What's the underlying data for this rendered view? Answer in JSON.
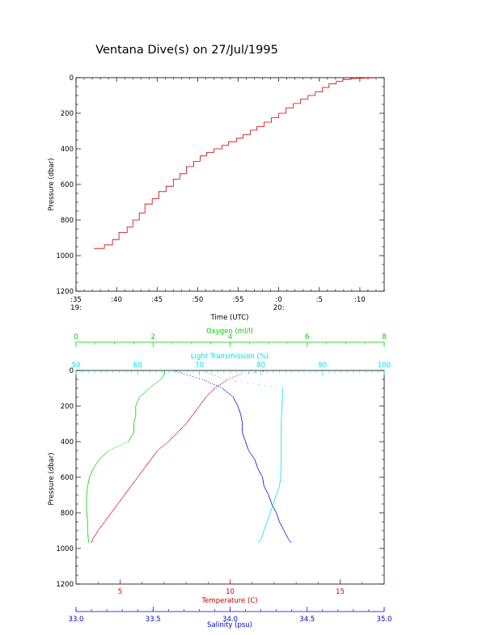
{
  "title": "Ventana Dive(s) on 27/Jul/1995",
  "colors": {
    "axis": "#000000",
    "temperature": "#cc0000",
    "salinity": "#0000cc",
    "oxygen": "#00cc00",
    "transmission": "#00e0e0",
    "trace": "#cc0000"
  },
  "chart_data": [
    {
      "type": "line",
      "xlabel": "Time (UTC)",
      "ylabel": "Pressure (dbar)",
      "x_tick_labels": [
        ":35",
        ":40",
        ":45",
        ":50",
        ":55",
        ":0",
        ":5",
        ":10"
      ],
      "x_tick_hour_labels": [
        {
          "at": ":35",
          "label": "19:"
        },
        {
          "at": ":0",
          "label": "20:"
        }
      ],
      "x_range_minutes_after_19_00": [
        35,
        73
      ],
      "y_ticks": [
        0,
        200,
        400,
        600,
        800,
        1000,
        1200
      ],
      "ylim": [
        1200,
        0
      ],
      "y_reversed": true,
      "step_style": true,
      "series": [
        {
          "time_minutes_after_19_00": [
            37.2,
            38.5,
            39.5,
            40.3,
            41.3,
            42.0,
            42.8,
            43.5,
            44.4,
            45.2,
            46.1,
            47.0,
            47.8,
            48.6,
            49.5,
            50.3,
            51.1,
            52.0,
            53.0,
            53.8,
            54.8,
            55.6,
            56.5,
            57.3,
            58.2,
            59.1,
            60.0,
            60.9,
            61.8,
            62.7,
            63.6,
            64.5,
            65.4,
            66.2,
            67.1,
            67.9,
            68.8,
            69.6,
            70.5,
            71.3,
            72.1
          ],
          "pressure_dbar": [
            960,
            940,
            910,
            870,
            840,
            800,
            760,
            710,
            680,
            640,
            610,
            570,
            540,
            500,
            470,
            440,
            420,
            400,
            380,
            360,
            340,
            320,
            295,
            275,
            250,
            225,
            200,
            170,
            145,
            120,
            100,
            80,
            55,
            35,
            20,
            10,
            5,
            3,
            2,
            1,
            0
          ]
        }
      ]
    },
    {
      "type": "scatter",
      "ylabel": "Pressure (dbar)",
      "y_ticks": [
        0,
        200,
        400,
        600,
        800,
        1000,
        1200
      ],
      "ylim": [
        1200,
        0
      ],
      "y_reversed": true,
      "x_axes": [
        {
          "label": "Oxygen (ml/l)",
          "position": "top-1",
          "range": [
            0,
            8
          ],
          "ticks": [
            0,
            2,
            4,
            6,
            8
          ],
          "color_key": "oxygen"
        },
        {
          "label": "Light Transmission (%)",
          "position": "top-2",
          "range": [
            50,
            100
          ],
          "ticks": [
            50,
            60,
            70,
            80,
            90,
            100
          ],
          "color_key": "transmission"
        },
        {
          "label": "Temperature (C)",
          "position": "bottom-1",
          "range": [
            3,
            17
          ],
          "ticks": [
            5,
            10,
            15
          ],
          "color_key": "temperature"
        },
        {
          "label": "Salinity (psu)",
          "position": "bottom-2",
          "range": [
            33.0,
            35.0
          ],
          "ticks": [
            "33.0",
            "33.5",
            "34.0",
            "34.5",
            "35.0"
          ],
          "color_key": "salinity"
        }
      ],
      "series": [
        {
          "name": "Temperature",
          "axis": "Temperature (C)",
          "color_key": "temperature",
          "pressure": [
            5,
            20,
            50,
            100,
            150,
            200,
            250,
            300,
            350,
            400,
            450,
            500,
            550,
            600,
            650,
            700,
            750,
            800,
            850,
            900,
            950,
            970
          ],
          "values": [
            11.5,
            10.5,
            9.9,
            9.3,
            8.9,
            8.6,
            8.3,
            8.0,
            7.6,
            7.2,
            6.7,
            6.4,
            6.1,
            5.8,
            5.5,
            5.2,
            4.9,
            4.6,
            4.3,
            4.0,
            3.75,
            3.7
          ]
        },
        {
          "name": "Salinity",
          "axis": "Salinity (psu)",
          "color_key": "salinity",
          "pressure": [
            5,
            20,
            50,
            100,
            150,
            200,
            250,
            300,
            350,
            400,
            450,
            500,
            550,
            600,
            650,
            700,
            750,
            800,
            850,
            900,
            950,
            970
          ],
          "values": [
            33.65,
            33.7,
            33.82,
            33.95,
            34.02,
            34.05,
            34.07,
            34.08,
            34.08,
            34.1,
            34.12,
            34.16,
            34.18,
            34.21,
            34.22,
            34.25,
            34.27,
            34.3,
            34.32,
            34.35,
            34.38,
            34.4
          ]
        },
        {
          "name": "Oxygen",
          "axis": "Oxygen (ml/l)",
          "color_key": "oxygen",
          "pressure": [
            5,
            20,
            50,
            100,
            150,
            200,
            250,
            300,
            350,
            400,
            450,
            500,
            550,
            600,
            650,
            700,
            750,
            800,
            850,
            900,
            950,
            970
          ],
          "values": [
            2.3,
            2.3,
            2.2,
            1.9,
            1.65,
            1.55,
            1.55,
            1.5,
            1.5,
            1.35,
            0.85,
            0.6,
            0.45,
            0.35,
            0.3,
            0.28,
            0.27,
            0.28,
            0.3,
            0.3,
            0.32,
            0.33
          ]
        },
        {
          "name": "Light Transmission",
          "axis": "Light Transmission (%)",
          "color_key": "transmission",
          "pressure": [
            5,
            20,
            50,
            100,
            150,
            200,
            300,
            400,
            500,
            600,
            650,
            700,
            750,
            800,
            850,
            900,
            950,
            970
          ],
          "values": [
            71.0,
            72.0,
            74.0,
            83.5,
            83.5,
            83.4,
            83.3,
            83.3,
            83.3,
            83.2,
            83.0,
            82.5,
            82.0,
            81.5,
            81.0,
            80.5,
            80.0,
            79.5
          ]
        }
      ]
    }
  ]
}
